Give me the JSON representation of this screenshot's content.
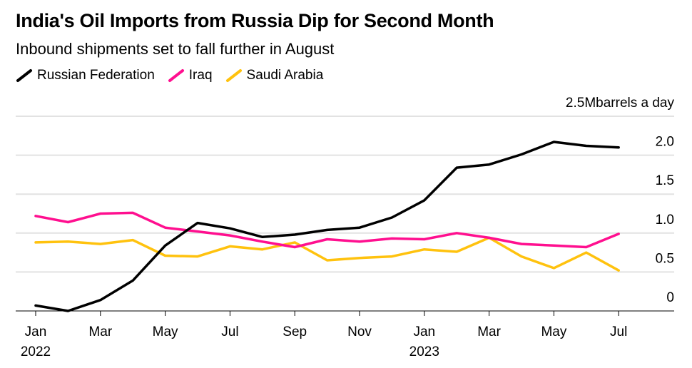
{
  "chart_data": {
    "type": "line",
    "title": "India's Oil Imports from Russia Dip for Second Month",
    "subtitle": "Inbound shipments set to fall further in August",
    "unit_label": "barrels a day",
    "x": [
      "2022-01",
      "2022-02",
      "2022-03",
      "2022-04",
      "2022-05",
      "2022-06",
      "2022-07",
      "2022-08",
      "2022-09",
      "2022-10",
      "2022-11",
      "2022-12",
      "2023-01",
      "2023-02",
      "2023-03",
      "2023-04",
      "2023-05",
      "2023-06",
      "2023-07"
    ],
    "x_ticks": [
      {
        "label": "Jan",
        "sub": "2022",
        "month": 0
      },
      {
        "label": "Mar",
        "sub": "",
        "month": 2
      },
      {
        "label": "May",
        "sub": "",
        "month": 4
      },
      {
        "label": "Jul",
        "sub": "",
        "month": 6
      },
      {
        "label": "Sep",
        "sub": "",
        "month": 8
      },
      {
        "label": "Nov",
        "sub": "",
        "month": 10
      },
      {
        "label": "Jan",
        "sub": "2023",
        "month": 12
      },
      {
        "label": "Mar",
        "sub": "",
        "month": 14
      },
      {
        "label": "May",
        "sub": "",
        "month": 16
      },
      {
        "label": "Jul",
        "sub": "",
        "month": 18
      }
    ],
    "y_ticks": [
      {
        "value": 0,
        "label": "0"
      },
      {
        "value": 0.5,
        "label": "0.5"
      },
      {
        "value": 1.0,
        "label": "1.0"
      },
      {
        "value": 1.5,
        "label": "1.5"
      },
      {
        "value": 2.0,
        "label": "2.0"
      },
      {
        "value": 2.5,
        "label": "2.5M"
      }
    ],
    "ylim": [
      0,
      2.5
    ],
    "grid": true,
    "legend_placement": "top-left",
    "series": [
      {
        "name": "Russian Federation",
        "color": "#000000",
        "values": [
          0.07,
          0.0,
          0.14,
          0.39,
          0.84,
          1.13,
          1.06,
          0.95,
          0.98,
          1.04,
          1.07,
          1.2,
          1.42,
          1.84,
          1.88,
          2.01,
          2.17,
          2.12,
          2.1
        ]
      },
      {
        "name": "Iraq",
        "color": "#ff0f8f",
        "values": [
          1.22,
          1.14,
          1.25,
          1.26,
          1.07,
          1.02,
          0.97,
          0.89,
          0.82,
          0.92,
          0.89,
          0.93,
          0.92,
          1.0,
          0.94,
          0.86,
          0.84,
          0.82,
          0.99
        ]
      },
      {
        "name": "Saudi Arabia",
        "color": "#ffc20e",
        "values": [
          0.88,
          0.89,
          0.86,
          0.91,
          0.71,
          0.7,
          0.83,
          0.79,
          0.88,
          0.65,
          0.68,
          0.7,
          0.79,
          0.76,
          0.94,
          0.7,
          0.55,
          0.75,
          0.52
        ]
      }
    ]
  }
}
